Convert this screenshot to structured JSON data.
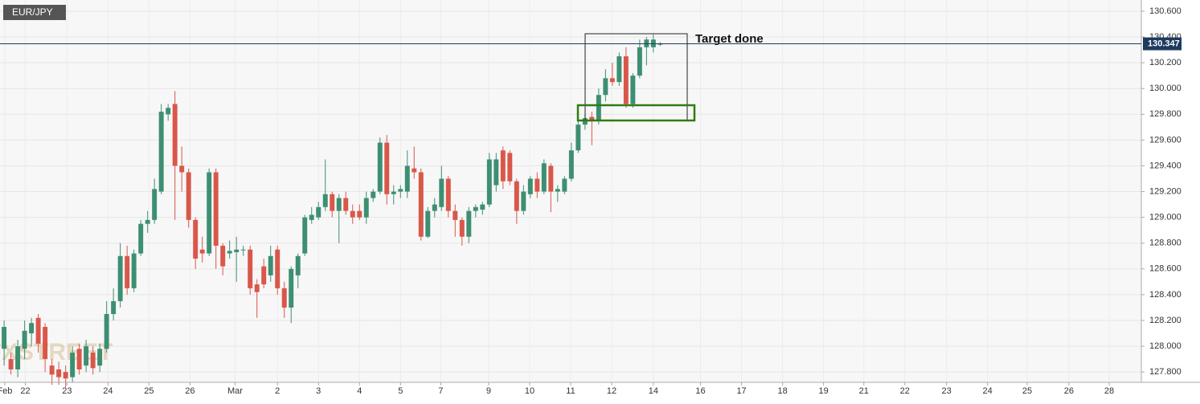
{
  "chart_data": {
    "type": "candlestick",
    "symbol": "EUR/JPY",
    "watermark": "FXSTREET",
    "annotation": "Target done",
    "up_color": "#3d8f72",
    "down_color": "#d9574a",
    "grid": true,
    "x": [
      0,
      1,
      2,
      3,
      4,
      5,
      6,
      7,
      8,
      9,
      10,
      11,
      12,
      13,
      14,
      15,
      16,
      17,
      18,
      19,
      20,
      21,
      22,
      23,
      24,
      25,
      26,
      27,
      28,
      29,
      30,
      31,
      32,
      33,
      34,
      35,
      36,
      37,
      38,
      39,
      40,
      41,
      42,
      43,
      44,
      45,
      46,
      47,
      48,
      49,
      50,
      51,
      52,
      53,
      54,
      55,
      56,
      57,
      58,
      59,
      60,
      61,
      62,
      63,
      64,
      65,
      66,
      67,
      68,
      69,
      70,
      71,
      72,
      73,
      74,
      75,
      76,
      77,
      78,
      79,
      80,
      81,
      82,
      83,
      84,
      85,
      86,
      87,
      88,
      89,
      90,
      91,
      92,
      93,
      94,
      95,
      96
    ],
    "open": [
      127.98,
      127.9,
      127.82,
      127.98,
      128.1,
      128.22,
      128.15,
      127.85,
      127.82,
      127.8,
      127.76,
      127.98,
      127.85,
      127.95,
      127.85,
      127.98,
      128.25,
      128.35,
      128.7,
      128.45,
      128.72,
      128.95,
      128.98,
      129.2,
      129.8,
      129.88,
      129.4,
      129.35,
      128.98,
      128.75,
      128.72,
      129.35,
      128.78,
      128.72,
      128.73,
      128.75,
      128.75,
      128.48,
      128.62,
      128.55,
      128.75,
      128.45,
      128.3,
      128.55,
      128.72,
      128.98,
      129.0,
      129.08,
      129.18,
      129.05,
      129.15,
      129.05,
      129.05,
      129.0,
      129.15,
      129.2,
      129.58,
      129.18,
      129.2,
      129.2,
      129.38,
      129.35,
      128.85,
      129.05,
      129.08,
      129.3,
      129.05,
      128.98,
      128.85,
      129.05,
      129.06,
      129.1,
      129.25,
      129.52,
      129.5,
      129.28,
      129.05,
      129.18,
      129.3,
      129.2,
      129.4,
      129.2,
      129.2,
      129.3,
      129.52,
      129.72,
      129.78,
      129.75,
      129.95,
      130.08,
      130.05,
      130.25,
      129.88,
      130.1,
      130.32,
      130.32,
      130.34
    ],
    "high": [
      128.2,
      127.95,
      128.05,
      128.2,
      128.22,
      128.25,
      128.18,
      127.9,
      127.88,
      127.85,
      128.0,
      128.02,
      128.05,
      128.0,
      128.02,
      128.35,
      128.45,
      128.8,
      128.78,
      128.75,
      128.98,
      129.05,
      129.3,
      129.88,
      129.88,
      129.98,
      129.55,
      129.38,
      129.0,
      128.85,
      129.38,
      129.38,
      128.8,
      128.82,
      128.85,
      128.78,
      128.78,
      128.52,
      128.68,
      128.78,
      128.78,
      128.5,
      128.62,
      128.72,
      129.02,
      129.08,
      129.12,
      129.45,
      129.2,
      129.18,
      129.2,
      129.1,
      129.1,
      129.2,
      129.22,
      129.62,
      129.64,
      129.25,
      129.25,
      129.52,
      129.55,
      129.38,
      129.08,
      129.15,
      129.4,
      129.32,
      129.1,
      129.0,
      129.08,
      129.1,
      129.12,
      129.5,
      129.5,
      129.55,
      129.52,
      129.3,
      129.25,
      129.32,
      129.35,
      129.45,
      129.42,
      129.25,
      129.32,
      129.58,
      129.78,
      129.8,
      129.82,
      130.0,
      130.15,
      130.2,
      130.28,
      130.32,
      130.12,
      130.38,
      130.4,
      130.42,
      130.36
    ],
    "low": [
      127.85,
      127.78,
      127.76,
      127.9,
      128.0,
      127.95,
      127.8,
      127.7,
      127.7,
      127.68,
      127.72,
      127.78,
      127.8,
      127.78,
      127.8,
      127.95,
      128.2,
      128.3,
      128.4,
      128.42,
      128.7,
      128.88,
      128.95,
      129.18,
      129.75,
      128.98,
      129.2,
      128.92,
      128.6,
      128.65,
      128.7,
      128.6,
      128.55,
      128.68,
      128.5,
      128.7,
      128.4,
      128.22,
      128.45,
      128.5,
      128.4,
      128.22,
      128.18,
      128.45,
      128.7,
      128.95,
      128.98,
      129.05,
      129.0,
      128.8,
      129.02,
      128.95,
      128.98,
      128.95,
      129.12,
      129.18,
      129.1,
      129.1,
      129.15,
      129.15,
      129.3,
      128.82,
      128.84,
      129.0,
      129.05,
      129.0,
      128.85,
      128.78,
      128.8,
      129.0,
      129.02,
      129.08,
      129.2,
      129.22,
      129.25,
      128.95,
      129.02,
      129.15,
      129.15,
      129.18,
      129.04,
      129.12,
      129.18,
      129.28,
      129.5,
      129.68,
      129.56,
      129.72,
      129.9,
      130.02,
      130.02,
      129.85,
      129.85,
      130.08,
      130.18,
      130.28,
      130.33
    ],
    "close": [
      128.15,
      127.82,
      128.0,
      128.12,
      128.18,
      128.02,
      127.9,
      127.78,
      127.76,
      127.75,
      127.95,
      127.82,
      128.0,
      127.83,
      127.98,
      128.25,
      128.35,
      128.7,
      128.45,
      128.72,
      128.95,
      128.98,
      129.22,
      129.82,
      129.85,
      129.4,
      129.35,
      128.98,
      128.68,
      128.72,
      129.35,
      128.78,
      128.62,
      128.74,
      128.75,
      128.75,
      128.45,
      128.42,
      128.48,
      128.7,
      128.45,
      128.3,
      128.6,
      128.7,
      129.0,
      129.02,
      129.08,
      129.18,
      129.05,
      129.15,
      129.05,
      129.0,
      129.0,
      129.15,
      129.2,
      129.58,
      129.18,
      129.2,
      129.22,
      129.4,
      129.35,
      128.85,
      129.05,
      129.1,
      129.3,
      129.05,
      128.98,
      128.85,
      129.05,
      129.08,
      129.1,
      129.45,
      129.45,
      129.28,
      129.28,
      129.05,
      129.2,
      129.3,
      129.2,
      129.42,
      129.2,
      129.22,
      129.3,
      129.52,
      129.72,
      129.77,
      129.75,
      129.95,
      130.08,
      130.05,
      130.25,
      129.88,
      130.1,
      130.32,
      130.38,
      130.38,
      130.347
    ],
    "last_price": {
      "value": 130.347,
      "label": "130.347"
    },
    "xlim": [
      -0.6,
      166.4
    ],
    "ylim": [
      127.72,
      130.687
    ],
    "xticks": [
      {
        "value": 0.1,
        "label": "Feb"
      },
      {
        "value": 3.1,
        "label": "22"
      },
      {
        "value": 9.2,
        "label": "23"
      },
      {
        "value": 15.2,
        "label": "24"
      },
      {
        "value": 21.2,
        "label": "25"
      },
      {
        "value": 27.2,
        "label": "26"
      },
      {
        "value": 33.8,
        "label": "Mar"
      },
      {
        "value": 40,
        "label": "2"
      },
      {
        "value": 46,
        "label": "3"
      },
      {
        "value": 52,
        "label": "4"
      },
      {
        "value": 58,
        "label": "5"
      },
      {
        "value": 63.9,
        "label": "7"
      },
      {
        "value": 70.9,
        "label": "9"
      },
      {
        "value": 76.9,
        "label": "10"
      },
      {
        "value": 82.9,
        "label": "11"
      },
      {
        "value": 88.9,
        "label": "12"
      },
      {
        "value": 95,
        "label": "14"
      },
      {
        "value": 101.9,
        "label": "16"
      },
      {
        "value": 107.9,
        "label": "17"
      },
      {
        "value": 113.9,
        "label": "18"
      },
      {
        "value": 119.9,
        "label": "19"
      },
      {
        "value": 125.8,
        "label": "21"
      },
      {
        "value": 131.8,
        "label": "22"
      },
      {
        "value": 137.9,
        "label": "23"
      },
      {
        "value": 143.9,
        "label": "24"
      },
      {
        "value": 149.7,
        "label": "25"
      },
      {
        "value": 155.8,
        "label": "26"
      },
      {
        "value": 161.7,
        "label": "28"
      }
    ],
    "yticks": [
      {
        "value": 127.8,
        "label": "127.800"
      },
      {
        "value": 128.0,
        "label": "128.000"
      },
      {
        "value": 128.2,
        "label": "128.200"
      },
      {
        "value": 128.4,
        "label": "128.400"
      },
      {
        "value": 128.6,
        "label": "128.600"
      },
      {
        "value": 128.8,
        "label": "128.800"
      },
      {
        "value": 129.0,
        "label": "129.000"
      },
      {
        "value": 129.2,
        "label": "129.200"
      },
      {
        "value": 129.4,
        "label": "129.400"
      },
      {
        "value": 129.6,
        "label": "129.600"
      },
      {
        "value": 129.8,
        "label": "129.800"
      },
      {
        "value": 130.0,
        "label": "130.000"
      },
      {
        "value": 130.2,
        "label": "130.200"
      },
      {
        "value": 130.4,
        "label": "130.400"
      },
      {
        "value": 130.6,
        "label": "130.600"
      }
    ]
  }
}
